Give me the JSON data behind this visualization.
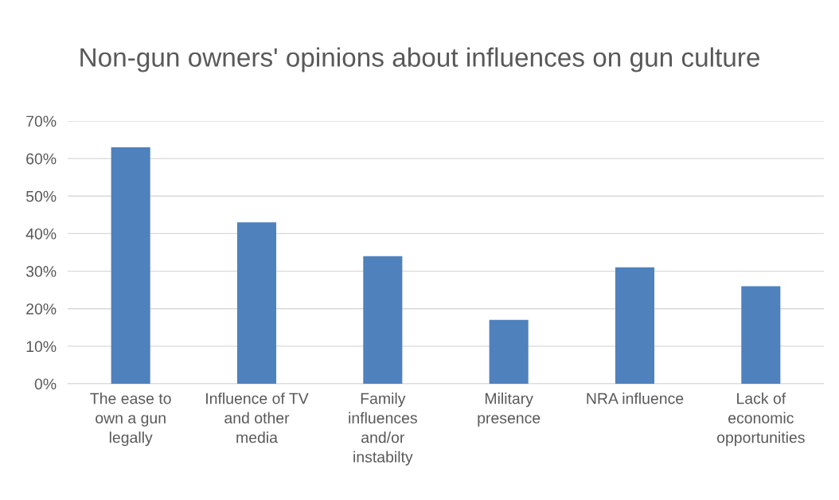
{
  "chart_data": {
    "type": "bar",
    "title": "Non-gun owners' opinions about influences on gun culture",
    "categories": [
      "The ease to\nown a gun\nlegally",
      "Influence of TV\nand other\nmedia",
      "Family\ninfluences\nand/or\ninstabilty",
      "Military\npresence",
      "NRA influence",
      "Lack of\neconomic\nopportunities"
    ],
    "values": [
      63,
      43,
      34,
      17,
      31,
      26
    ],
    "color": "#4f81bd",
    "ylim": [
      0,
      70
    ],
    "yticks": [
      {
        "value": 0,
        "label": "0%"
      },
      {
        "value": 10,
        "label": "10%"
      },
      {
        "value": 20,
        "label": "20%"
      },
      {
        "value": 30,
        "label": "30%"
      },
      {
        "value": 40,
        "label": "40%"
      },
      {
        "value": 50,
        "label": "50%"
      },
      {
        "value": 60,
        "label": "60%"
      },
      {
        "value": 70,
        "label": "70%"
      }
    ],
    "grid": "y",
    "legend": false
  }
}
